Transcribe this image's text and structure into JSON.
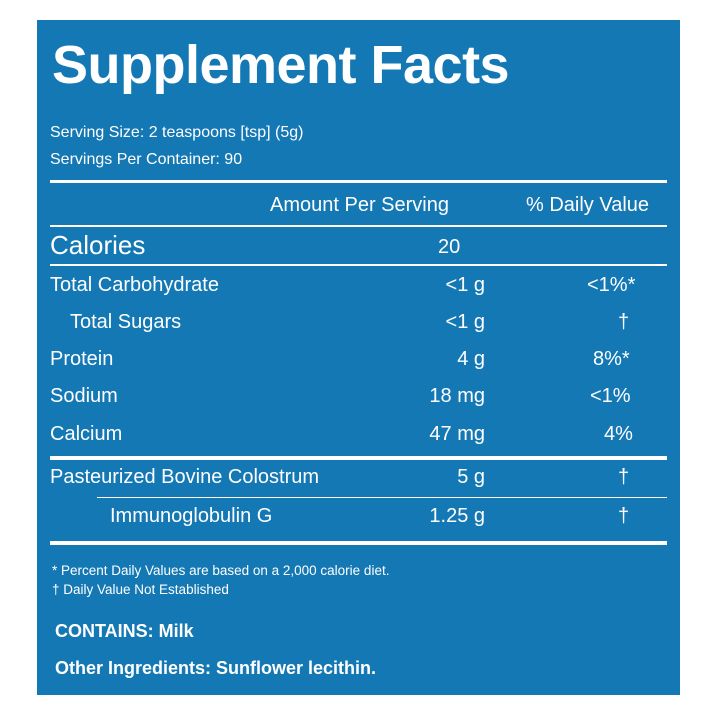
{
  "title": "Supplement Facts",
  "serving_size": "Serving Size: 2 teaspoons [tsp] (5g)",
  "servings_per_container": "Servings Per Container: 90",
  "header": {
    "amount_per_serving": "Amount Per Serving",
    "daily_value": "% Daily Value"
  },
  "calories": {
    "label": "Calories",
    "amount": "20"
  },
  "nutrients": [
    {
      "name": "Total Carbohydrate",
      "amount": "<1 g",
      "dv": "<1%*"
    },
    {
      "name": "Total Sugars",
      "amount": "<1 g",
      "dv": "†"
    },
    {
      "name": "Protein",
      "amount": "4 g",
      "dv": "8%*"
    },
    {
      "name": "Sodium",
      "amount": "18 mg",
      "dv": "<1%"
    },
    {
      "name": "Calcium",
      "amount": "47 mg",
      "dv": "4%"
    }
  ],
  "ingredients": [
    {
      "name": "Pasteurized Bovine Colostrum",
      "amount": "5 g",
      "dv": "†"
    },
    {
      "name": "Immunoglobulin G",
      "amount": "1.25 g",
      "dv": "†"
    }
  ],
  "footnotes": {
    "percent_dv": "* Percent Daily Values are based on a 2,000 calorie diet.",
    "not_established": "† Daily Value Not Established"
  },
  "contains": "CONTAINS: Milk",
  "other_ingredients": "Other Ingredients: Sunflower lecithin.",
  "colors": {
    "panel_background": "#1478b4",
    "text": "#ffffff"
  }
}
